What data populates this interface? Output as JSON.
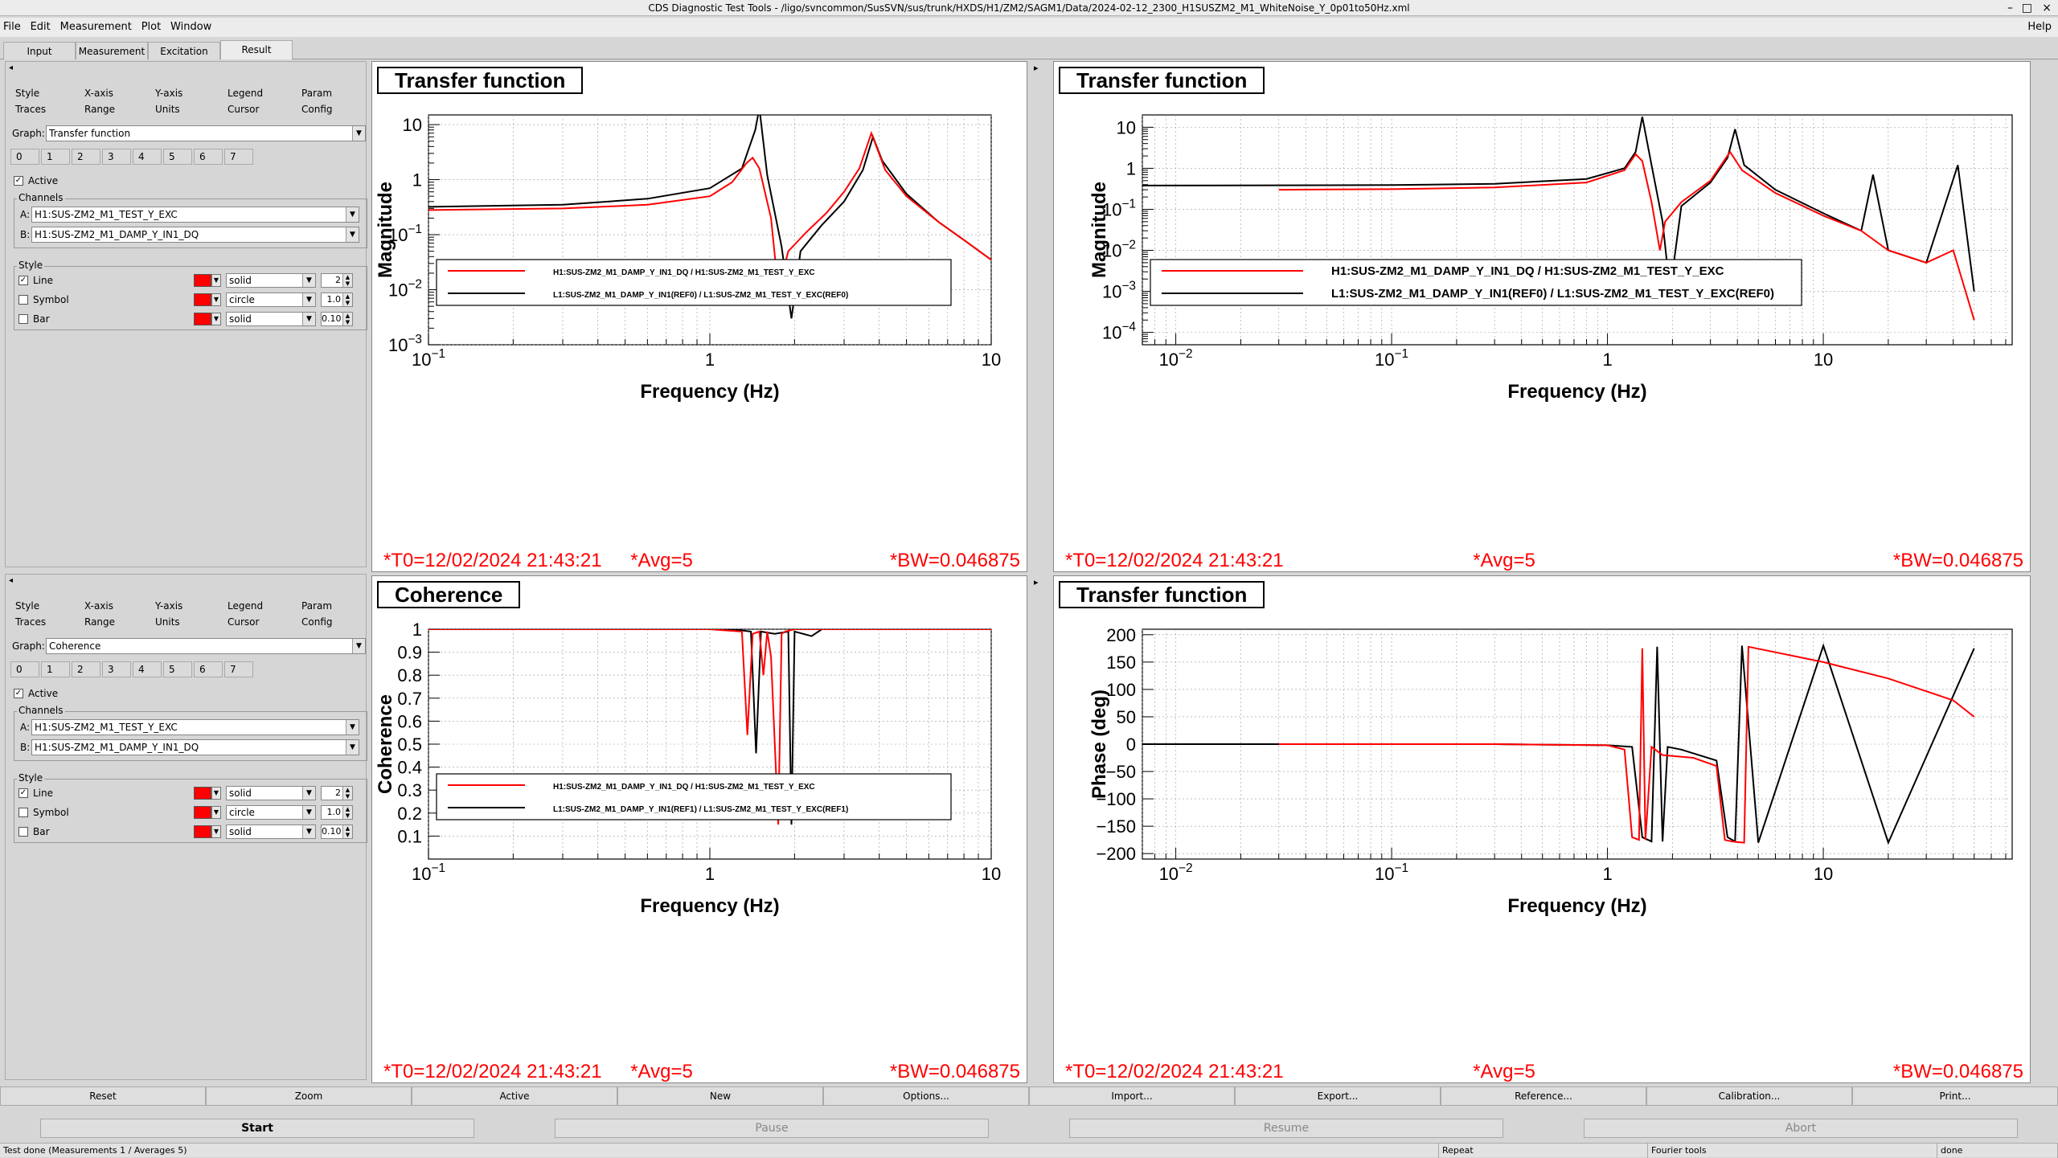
{
  "window": {
    "title": "CDS Diagnostic Test Tools - /ligo/svncommon/SusSVN/sus/trunk/HXDS/H1/ZM2/SAGM1/Data/2024-02-12_2300_H1SUSZM2_M1_WhiteNoise_Y_0p01to50Hz.xml"
  },
  "menu": [
    "File",
    "Edit",
    "Measurement",
    "Plot",
    "Window"
  ],
  "menu_help": "Help",
  "main_tabs": [
    "Input",
    "Measurement",
    "Excitation",
    "Result"
  ],
  "sidepanels": [
    {
      "style_tabs": [
        "Style",
        "X-axis",
        "Y-axis",
        "Legend",
        "Param"
      ],
      "style_tabs2": [
        "Traces",
        "Range",
        "Units",
        "Cursor",
        "Config"
      ],
      "graph_label": "Graph:",
      "graph_value": "Transfer function",
      "trace_tabs": [
        "0",
        "1",
        "2",
        "3",
        "4",
        "5",
        "6",
        "7"
      ],
      "active_label": "Active",
      "channels_label": "Channels",
      "chanA_label": "A:",
      "chanA": "H1:SUS-ZM2_M1_TEST_Y_EXC",
      "chanB_label": "B:",
      "chanB": "H1:SUS-ZM2_M1_DAMP_Y_IN1_DQ",
      "style_label": "Style",
      "line_label": "Line",
      "line_style": "solid",
      "line_width": "2",
      "symbol_label": "Symbol",
      "symbol_style": "circle",
      "symbol_size": "1.0",
      "bar_label": "Bar",
      "bar_style": "solid",
      "bar_width": "0.10"
    },
    {
      "style_tabs": [
        "Style",
        "X-axis",
        "Y-axis",
        "Legend",
        "Param"
      ],
      "style_tabs2": [
        "Traces",
        "Range",
        "Units",
        "Cursor",
        "Config"
      ],
      "graph_label": "Graph:",
      "graph_value": "Coherence",
      "trace_tabs": [
        "0",
        "1",
        "2",
        "3",
        "4",
        "5",
        "6",
        "7"
      ],
      "active_label": "Active",
      "channels_label": "Channels",
      "chanA_label": "A:",
      "chanA": "H1:SUS-ZM2_M1_TEST_Y_EXC",
      "chanB_label": "B:",
      "chanB": "H1:SUS-ZM2_M1_DAMP_Y_IN1_DQ",
      "style_label": "Style",
      "line_label": "Line",
      "line_style": "solid",
      "line_width": "2",
      "symbol_label": "Symbol",
      "symbol_style": "circle",
      "symbol_size": "1.0",
      "bar_label": "Bar",
      "bar_style": "solid",
      "bar_width": "0.10"
    }
  ],
  "colors": {
    "ref": "#000000",
    "live": "#ff0000"
  },
  "chart_data": [
    {
      "type": "line",
      "title": "Transfer function",
      "xlabel": "Frequency (Hz)",
      "ylabel": "Magnitude",
      "xscale": "log",
      "yscale": "log",
      "xlim": [
        0.1,
        10
      ],
      "ylim": [
        0.001,
        15
      ],
      "xticks": [
        "10^-1",
        "1",
        "10"
      ],
      "yticks": [
        "10^-3",
        "10^-2",
        "10^-1",
        "1",
        "10"
      ],
      "legend": "bottom",
      "series": [
        {
          "name": "H1:SUS-ZM2_M1_DAMP_Y_IN1_DQ / H1:SUS-ZM2_M1_TEST_Y_EXC",
          "color": "#ff0000",
          "x": [
            0.1,
            0.3,
            0.6,
            1.0,
            1.2,
            1.35,
            1.42,
            1.5,
            1.65,
            1.75,
            1.9,
            2.2,
            2.6,
            3.0,
            3.4,
            3.75,
            4.2,
            5.0,
            6.5,
            8.0,
            10
          ],
          "y": [
            0.28,
            0.3,
            0.35,
            0.5,
            0.9,
            2.0,
            2.5,
            1.6,
            0.2,
            0.01,
            0.05,
            0.11,
            0.25,
            0.6,
            1.6,
            7,
            1.5,
            0.5,
            0.17,
            0.08,
            0.035
          ]
        },
        {
          "name": "L1:SUS-ZM2_M1_DAMP_Y_IN1(REF0) / L1:SUS-ZM2_M1_TEST_Y_EXC(REF0)",
          "color": "#000000",
          "x": [
            0.1,
            0.3,
            0.6,
            1.0,
            1.3,
            1.45,
            1.5,
            1.6,
            1.8,
            1.95,
            2.1,
            2.5,
            3.0,
            3.5,
            3.8,
            4.1,
            5.0,
            6.5,
            8.0,
            10
          ],
          "y": [
            0.32,
            0.35,
            0.45,
            0.7,
            1.6,
            8,
            20,
            1.2,
            0.06,
            0.003,
            0.05,
            0.15,
            0.4,
            1.5,
            6,
            2.2,
            0.55,
            0.17,
            0.08,
            0.035
          ]
        }
      ],
      "footer": {
        "t0": "*T0=12/02/2024 21:43:21",
        "avg": "*Avg=5",
        "bw": "*BW=0.046875"
      }
    },
    {
      "type": "line",
      "title": "Transfer function",
      "xlabel": "Frequency (Hz)",
      "ylabel": "Magnitude",
      "xscale": "log",
      "yscale": "log",
      "xlim": [
        0.007,
        75
      ],
      "ylim": [
        5e-05,
        20
      ],
      "xticks": [
        "10^-2",
        "10^-1",
        "1",
        "10"
      ],
      "yticks": [
        "10^-4",
        "10^-3",
        "10^-2",
        "10^-1",
        "1",
        "10"
      ],
      "legend": "bottom",
      "series": [
        {
          "name": "H1:SUS-ZM2_M1_DAMP_Y_IN1_DQ / H1:SUS-ZM2_M1_TEST_Y_EXC",
          "color": "#ff0000",
          "x": [
            0.03,
            0.1,
            0.3,
            0.8,
            1.2,
            1.35,
            1.45,
            1.6,
            1.75,
            1.85,
            2.2,
            3.0,
            3.7,
            4.2,
            6,
            10,
            15,
            20,
            30,
            40,
            50
          ],
          "y": [
            0.3,
            0.31,
            0.34,
            0.45,
            0.9,
            2.2,
            1.5,
            0.15,
            0.01,
            0.05,
            0.15,
            0.5,
            2.5,
            0.9,
            0.25,
            0.07,
            0.03,
            0.01,
            0.005,
            0.01,
            0.0002
          ]
        },
        {
          "name": "L1:SUS-ZM2_M1_DAMP_Y_IN1(REF0) / L1:SUS-ZM2_M1_TEST_Y_EXC(REF0)",
          "color": "#000000",
          "x": [
            0.007,
            0.1,
            0.3,
            0.8,
            1.2,
            1.35,
            1.45,
            1.6,
            1.8,
            1.95,
            2.2,
            3.0,
            3.6,
            3.9,
            4.3,
            6,
            10,
            15,
            17,
            20,
            30,
            42,
            50
          ],
          "y": [
            0.38,
            0.39,
            0.42,
            0.55,
            1.0,
            2.5,
            18,
            1.2,
            0.05,
            0.001,
            0.12,
            0.45,
            1.8,
            9,
            1.2,
            0.3,
            0.08,
            0.03,
            0.7,
            0.01,
            0.005,
            1.2,
            0.001
          ]
        }
      ],
      "footer": {
        "t0": "*T0=12/02/2024 21:43:21",
        "avg": "*Avg=5",
        "bw": "*BW=0.046875"
      }
    },
    {
      "type": "line",
      "title": "Coherence",
      "xlabel": "Frequency (Hz)",
      "ylabel": "Coherence",
      "xscale": "log",
      "yscale": "linear",
      "xlim": [
        0.1,
        10
      ],
      "ylim": [
        0,
        1
      ],
      "xticks": [
        "10^-1",
        "1",
        "10"
      ],
      "yticks": [
        "0.1",
        "0.2",
        "0.3",
        "0.4",
        "0.5",
        "0.6",
        "0.7",
        "0.8",
        "0.9",
        "1"
      ],
      "legend": "bottom",
      "series": [
        {
          "name": "H1:SUS-ZM2_M1_DAMP_Y_IN1_DQ / H1:SUS-ZM2_M1_TEST_Y_EXC",
          "color": "#ff0000",
          "x": [
            0.1,
            1.0,
            1.3,
            1.36,
            1.42,
            1.5,
            1.55,
            1.6,
            1.65,
            1.75,
            1.8,
            1.85,
            2.0,
            10
          ],
          "y": [
            1.0,
            1.0,
            0.99,
            0.54,
            0.98,
            0.99,
            0.8,
            0.99,
            0.88,
            0.15,
            0.98,
            0.99,
            1.0,
            1.0
          ]
        },
        {
          "name": "L1:SUS-ZM2_M1_DAMP_Y_IN1(REF1) / L1:SUS-ZM2_M1_TEST_Y_EXC(REF1)",
          "color": "#000000",
          "x": [
            0.1,
            1.2,
            1.4,
            1.46,
            1.52,
            1.7,
            1.9,
            1.95,
            2.0,
            2.3,
            2.5,
            10
          ],
          "y": [
            1.0,
            1.0,
            0.99,
            0.46,
            0.99,
            0.98,
            0.99,
            0.15,
            0.99,
            0.97,
            1.0,
            1.0
          ]
        }
      ],
      "footer": {
        "t0": "*T0=12/02/2024 21:43:21",
        "avg": "*Avg=5",
        "bw": "*BW=0.046875"
      }
    },
    {
      "type": "line",
      "title": "Transfer function",
      "xlabel": "Frequency (Hz)",
      "ylabel": "Phase (deg)",
      "xscale": "log",
      "yscale": "linear",
      "xlim": [
        0.007,
        75
      ],
      "ylim": [
        -210,
        210
      ],
      "xticks": [
        "10^-2",
        "10^-1",
        "1",
        "10"
      ],
      "yticks": [
        "-200",
        "-150",
        "-100",
        "-50",
        "0",
        "50",
        "100",
        "150",
        "200"
      ],
      "legend": "none",
      "series": [
        {
          "name": "H1:SUS-ZM2_M1_DAMP_Y_IN1_DQ / H1:SUS-ZM2_M1_TEST_Y_EXC",
          "color": "#ff0000",
          "x": [
            0.03,
            0.3,
            1.0,
            1.2,
            1.3,
            1.4,
            1.45,
            1.5,
            1.6,
            1.8,
            2.5,
            3.2,
            3.5,
            3.8,
            4.3,
            4.5,
            10,
            20,
            40,
            50
          ],
          "y": [
            0,
            0,
            -2,
            -10,
            -170,
            -175,
            175,
            -175,
            -5,
            -20,
            -25,
            -40,
            -175,
            -178,
            -180,
            178,
            150,
            120,
            80,
            50
          ]
        },
        {
          "name": "L1:SUS-ZM2_M1_DAMP_Y_IN1(REF0) / L1:SUS-ZM2_M1_TEST_Y_EXC(REF0)",
          "color": "#000000",
          "x": [
            0.007,
            0.3,
            1.0,
            1.3,
            1.45,
            1.6,
            1.7,
            1.8,
            1.9,
            2.2,
            3.2,
            3.6,
            3.9,
            4.2,
            5,
            10,
            20,
            50
          ],
          "y": [
            0,
            0,
            -2,
            -5,
            -170,
            -178,
            178,
            -178,
            -5,
            -10,
            -30,
            -170,
            -178,
            180,
            -180,
            180,
            -180,
            175
          ]
        }
      ],
      "footer": {
        "t0": "*T0=12/02/2024 21:43:21",
        "avg": "*Avg=5",
        "bw": "*BW=0.046875"
      }
    }
  ],
  "buttons1": [
    "Reset",
    "Zoom",
    "Active",
    "New",
    "Options...",
    "Import...",
    "Export...",
    "Reference...",
    "Calibration...",
    "Print..."
  ],
  "buttons2": [
    "Start",
    "Pause",
    "Resume",
    "Abort"
  ],
  "status": {
    "msg": "Test done (Measurements 1 / Averages 5)",
    "repeat": "Repeat",
    "fourier": "Fourier tools",
    "done": "done"
  }
}
